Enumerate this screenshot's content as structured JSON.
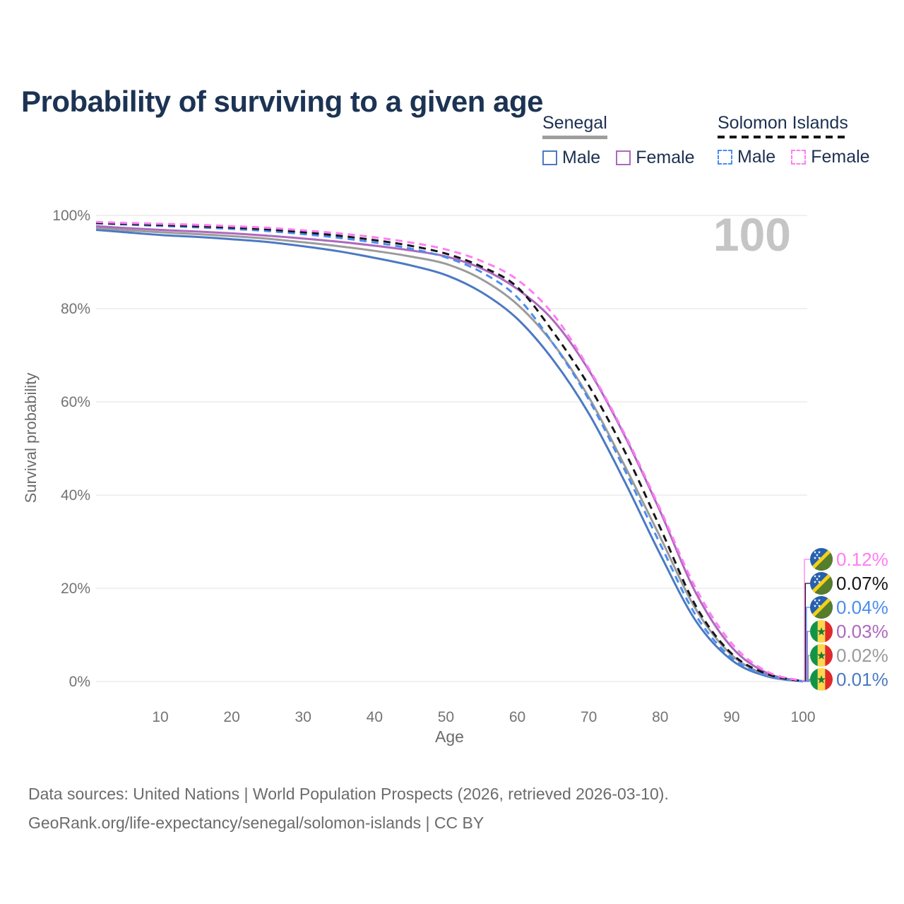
{
  "title": "Probability of surviving to a given age",
  "watermark_age": "100",
  "legend": {
    "groups": [
      {
        "name": "Senegal",
        "line_style": "solid",
        "underline_color": "#9e9e9e",
        "items": [
          {
            "label": "Male",
            "color": "#4b79c2"
          },
          {
            "label": "Female",
            "color": "#ae68bd"
          }
        ]
      },
      {
        "name": "Solomon Islands",
        "line_style": "dashed",
        "underline_color": "#161616",
        "items": [
          {
            "label": "Male",
            "color": "#4a8df0"
          },
          {
            "label": "Female",
            "color": "#ff7df5"
          }
        ]
      }
    ]
  },
  "chart_data": {
    "type": "line",
    "title": "Probability of surviving to a given age",
    "xlabel": "Age",
    "ylabel": "Survival probability",
    "xlim": [
      1,
      100
    ],
    "ylim": [
      0,
      100
    ],
    "x_ticks": [
      10,
      20,
      30,
      40,
      50,
      60,
      70,
      80,
      90,
      100
    ],
    "y_ticks": [
      {
        "value": 0,
        "label": "0%"
      },
      {
        "value": 20,
        "label": "20%"
      },
      {
        "value": 40,
        "label": "40%"
      },
      {
        "value": 60,
        "label": "60%"
      },
      {
        "value": 80,
        "label": "80%"
      },
      {
        "value": 100,
        "label": "100%"
      }
    ],
    "grid": "horizontal",
    "legend_position": "top-right",
    "ages": [
      1,
      5,
      10,
      15,
      20,
      25,
      30,
      35,
      40,
      45,
      50,
      55,
      60,
      65,
      70,
      75,
      80,
      85,
      90,
      95,
      100
    ],
    "series": [
      {
        "name": "Senegal Male",
        "country": "Senegal",
        "sex": "Male",
        "color": "#4b79c2",
        "dash": "solid",
        "flag": "senegal",
        "end_label": "0.01%",
        "values": [
          96.9,
          96.4,
          95.8,
          95.4,
          94.9,
          94.3,
          93.4,
          92.3,
          90.9,
          89.3,
          87.2,
          83.5,
          77.8,
          69.0,
          57.5,
          43.0,
          27.3,
          13.0,
          4.6,
          1.1,
          0.01
        ]
      },
      {
        "name": "Senegal",
        "country": "Senegal",
        "sex": "Both sexes",
        "color": "#9b9b9b",
        "dash": "solid",
        "flag": "senegal",
        "end_label": "0.02%",
        "values": [
          97.3,
          96.85,
          96.4,
          96.0,
          95.55,
          95.0,
          94.25,
          93.4,
          92.4,
          91.2,
          89.6,
          86.3,
          80.9,
          72.5,
          61.0,
          46.4,
          31.0,
          15.5,
          5.7,
          1.4,
          0.02
        ]
      },
      {
        "name": "Senegal Female",
        "country": "Senegal",
        "sex": "Female",
        "color": "#ae68bd",
        "dash": "solid",
        "flag": "senegal",
        "end_label": "0.03%",
        "values": [
          97.7,
          97.3,
          96.9,
          96.55,
          96.15,
          95.65,
          95.05,
          94.35,
          93.5,
          92.5,
          91.2,
          88.6,
          84.2,
          77.5,
          66.8,
          52.8,
          36.5,
          19.0,
          7.4,
          1.8,
          0.03
        ]
      },
      {
        "name": "Solomon Islands Male",
        "country": "Solomon Islands",
        "sex": "Male",
        "color": "#4a8df0",
        "dash": "dashed",
        "flag": "solomon-islands",
        "end_label": "0.04%",
        "values": [
          98.3,
          98.05,
          97.75,
          97.45,
          97.1,
          96.65,
          96.0,
          95.2,
          94.2,
          92.9,
          91.0,
          87.8,
          82.4,
          72.5,
          60.5,
          45.5,
          29.5,
          14.2,
          5.1,
          1.3,
          0.04
        ]
      },
      {
        "name": "Solomon Islands",
        "country": "Solomon Islands",
        "sex": "Both sexes",
        "color": "#161616",
        "dash": "dashed",
        "flag": "solomon-islands",
        "end_label": "0.07%",
        "values": [
          98.4,
          98.2,
          97.95,
          97.7,
          97.4,
          97.0,
          96.4,
          95.65,
          94.7,
          93.5,
          91.8,
          89.0,
          84.6,
          75.0,
          63.5,
          49.5,
          33.0,
          16.2,
          6.0,
          1.6,
          0.07
        ]
      },
      {
        "name": "Solomon Islands Female",
        "country": "Solomon Islands",
        "sex": "Female",
        "color": "#ff7df5",
        "dash": "dashed",
        "flag": "solomon-islands",
        "end_label": "0.12%",
        "values": [
          98.6,
          98.4,
          98.2,
          98.0,
          97.7,
          97.35,
          96.8,
          96.15,
          95.3,
          94.2,
          92.7,
          90.2,
          86.2,
          78.8,
          67.2,
          53.2,
          37.0,
          20.0,
          8.2,
          2.1,
          0.12
        ]
      }
    ],
    "flag_colors": {
      "senegal": {
        "green": "#129447",
        "yellow": "#fdd64f",
        "red": "#e02a2a",
        "star": "#1b7a35"
      },
      "solomon-islands": {
        "blue": "#2660ad",
        "green": "#557d2b",
        "yellow": "#f4d019",
        "star": "#ffffff"
      }
    }
  },
  "footer": {
    "line1": "Data sources: United Nations | World Population Prospects (2026, retrieved 2026-03-10).",
    "line2": "GeoRank.org/life-expectancy/senegal/solomon-islands | CC BY"
  }
}
